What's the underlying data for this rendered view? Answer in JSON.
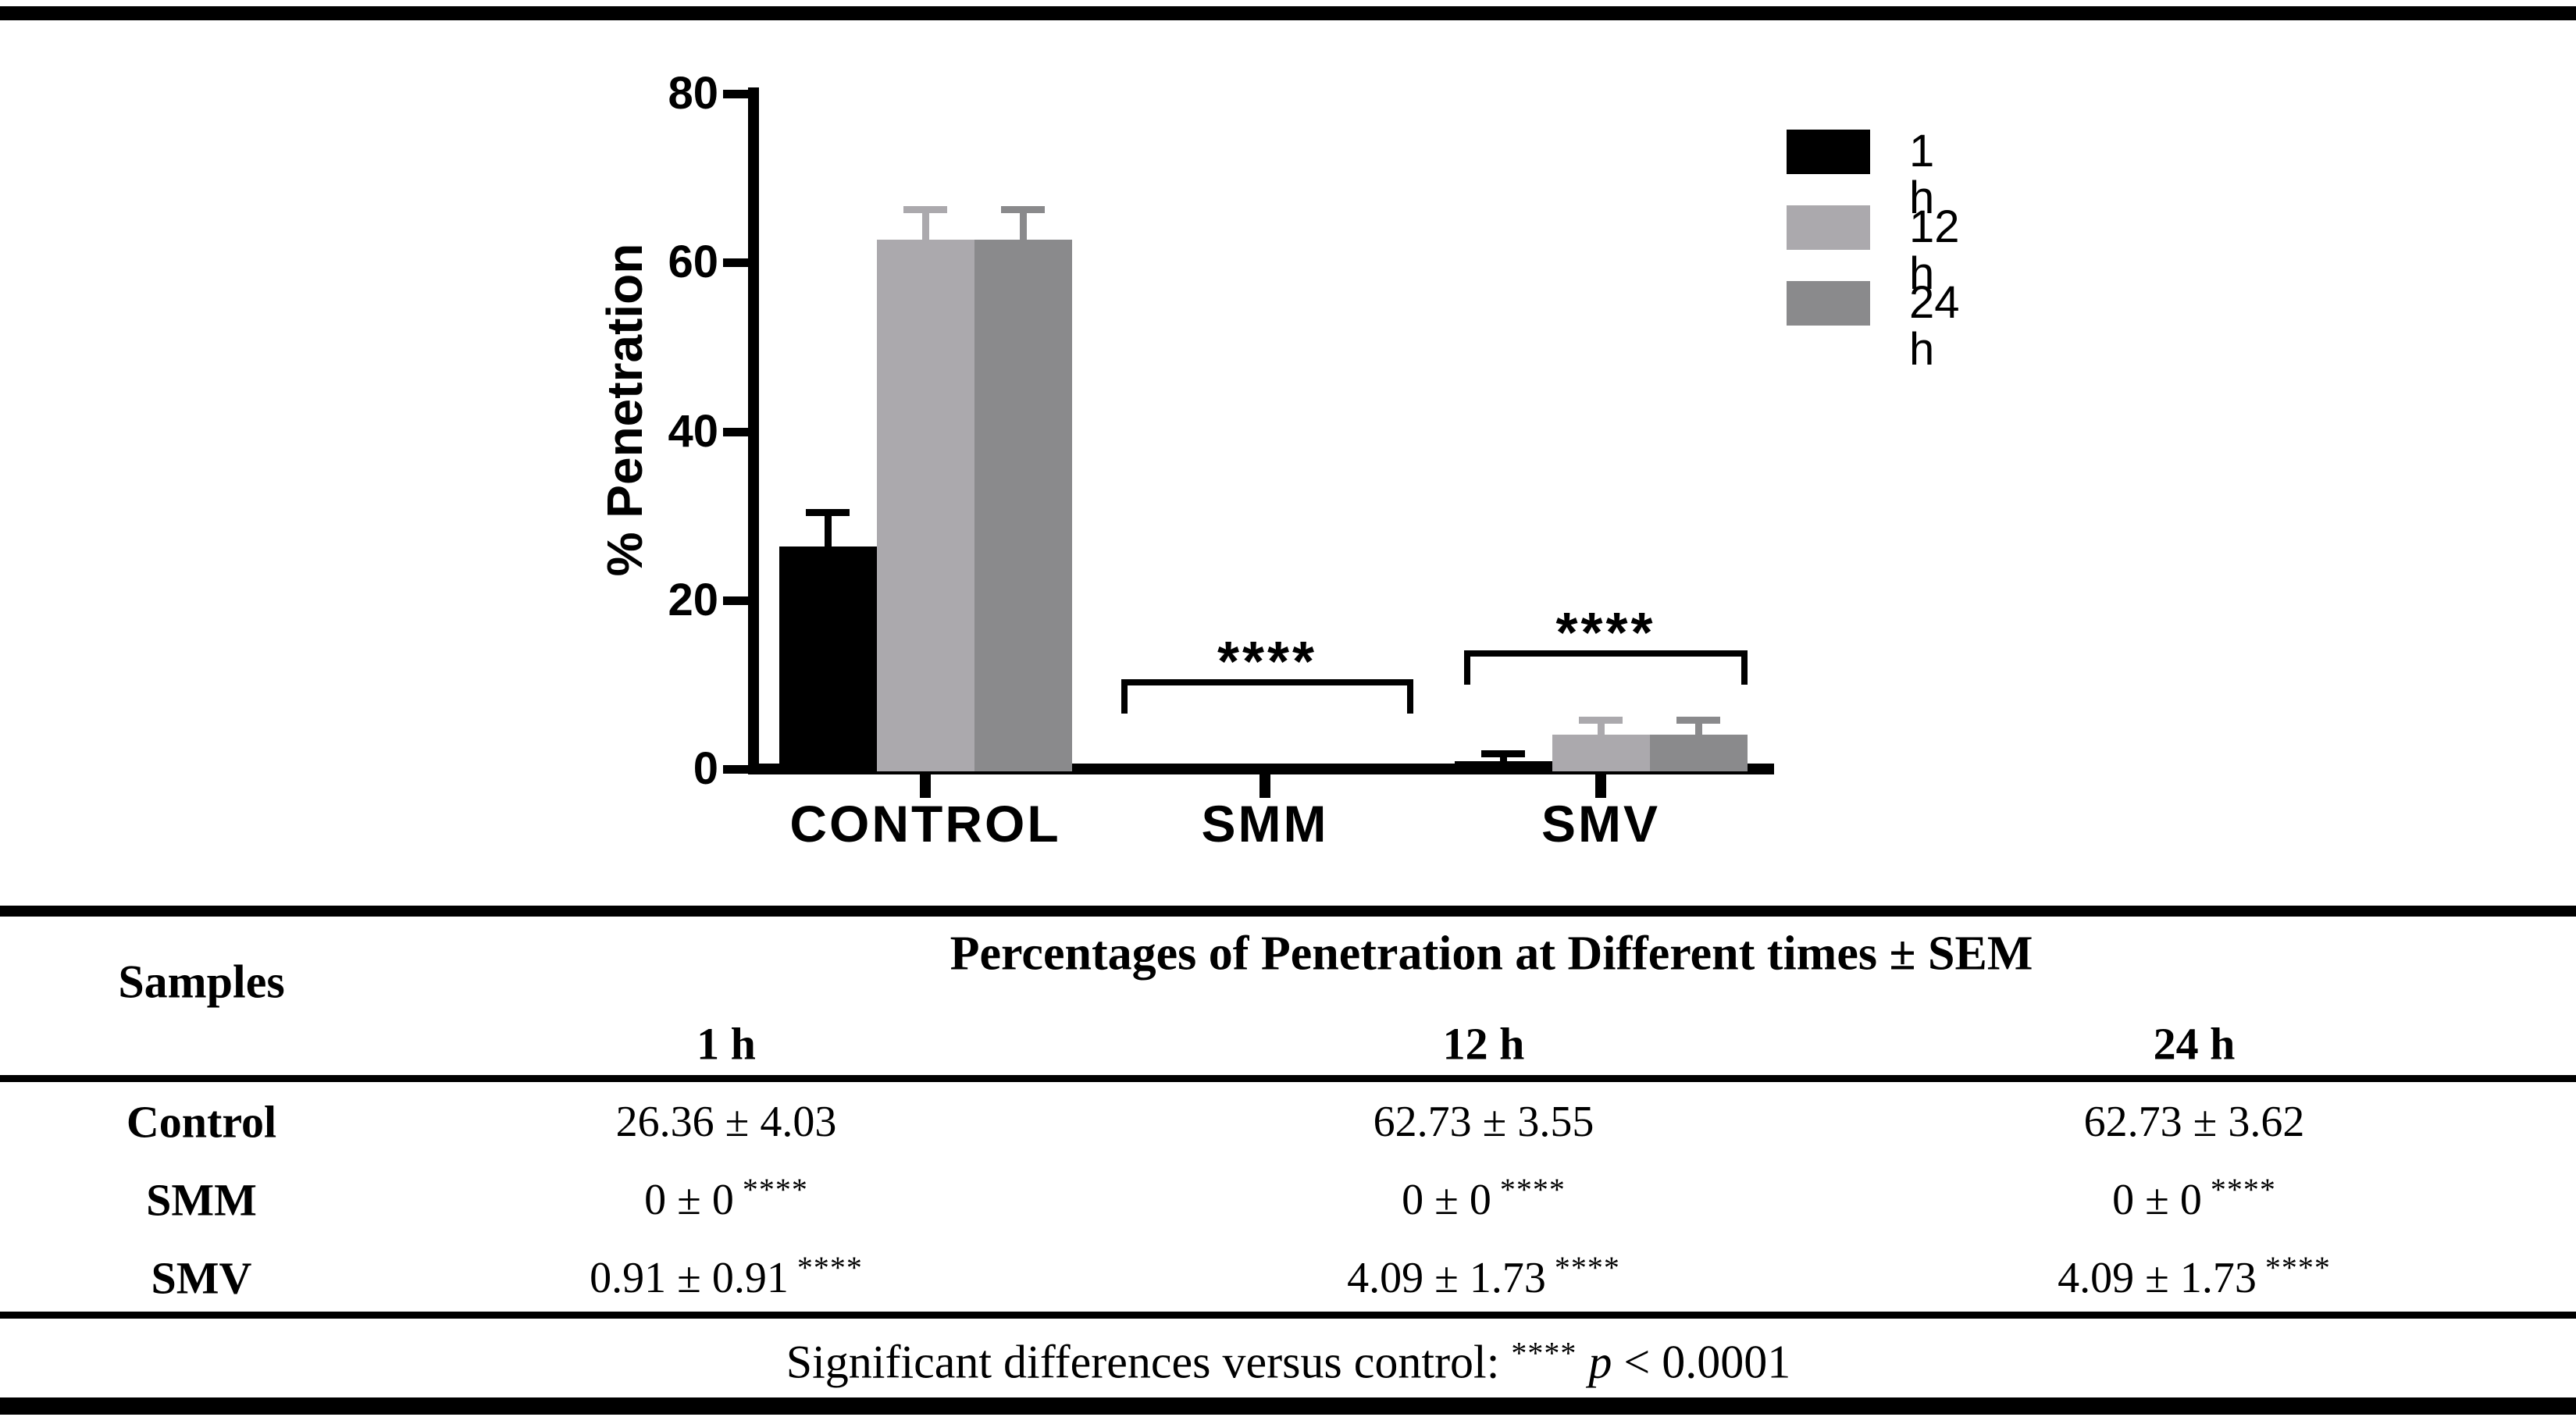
{
  "chart_data": {
    "type": "bar",
    "title": "",
    "categories": [
      "CONTROL",
      "SMM",
      "SMV"
    ],
    "series": [
      {
        "name": "1 h",
        "color": "#000000",
        "values": [
          26.36,
          0,
          0.91
        ],
        "sem": [
          4.03,
          0,
          0.91
        ]
      },
      {
        "name": "12 h",
        "color": "#ABA9AD",
        "values": [
          62.73,
          0,
          4.09
        ],
        "sem": [
          3.55,
          0,
          1.73
        ]
      },
      {
        "name": "24 h",
        "color": "#8A8A8C",
        "values": [
          62.73,
          0,
          4.09
        ],
        "sem": [
          3.62,
          0,
          1.73
        ]
      }
    ],
    "xlabel": "",
    "ylabel": "% Penetration",
    "ylim": [
      0,
      80
    ],
    "yticks": [
      0,
      20,
      40,
      60,
      80
    ],
    "grid": false,
    "legend_position": "upper right",
    "annotations": [
      {
        "target": "SMM",
        "label": "****"
      },
      {
        "target": "SMV",
        "label": "****"
      }
    ]
  },
  "table": {
    "row_header": "Samples",
    "header_title": "Percentages of Penetration at Different times ± SEM",
    "time_headers": [
      "1 h",
      "12 h",
      "24 h"
    ],
    "rows": [
      {
        "sample": "Control",
        "cells": [
          {
            "v": "26.36 ± 4.03",
            "s": ""
          },
          {
            "v": "62.73 ± 3.55",
            "s": ""
          },
          {
            "v": "62.73 ± 3.62",
            "s": ""
          }
        ]
      },
      {
        "sample": "SMM",
        "cells": [
          {
            "v": "0 ± 0",
            "s": "****"
          },
          {
            "v": "0 ± 0",
            "s": "****"
          },
          {
            "v": "0 ± 0",
            "s": "****"
          }
        ]
      },
      {
        "sample": "SMV",
        "cells": [
          {
            "v": "0.91 ± 0.91",
            "s": "****"
          },
          {
            "v": "4.09 ± 1.73",
            "s": "****"
          },
          {
            "v": "4.09 ± 1.73",
            "s": "****"
          }
        ]
      }
    ],
    "note": {
      "prefix": "Significant differences versus control: ",
      "stars": "****",
      "p": "p",
      "rest": " < 0.0001"
    }
  },
  "colors": {
    "axis": "#000000",
    "series_1h": "#000000",
    "series_12h": "#ABA9AD",
    "series_24h": "#8A8A8C"
  }
}
